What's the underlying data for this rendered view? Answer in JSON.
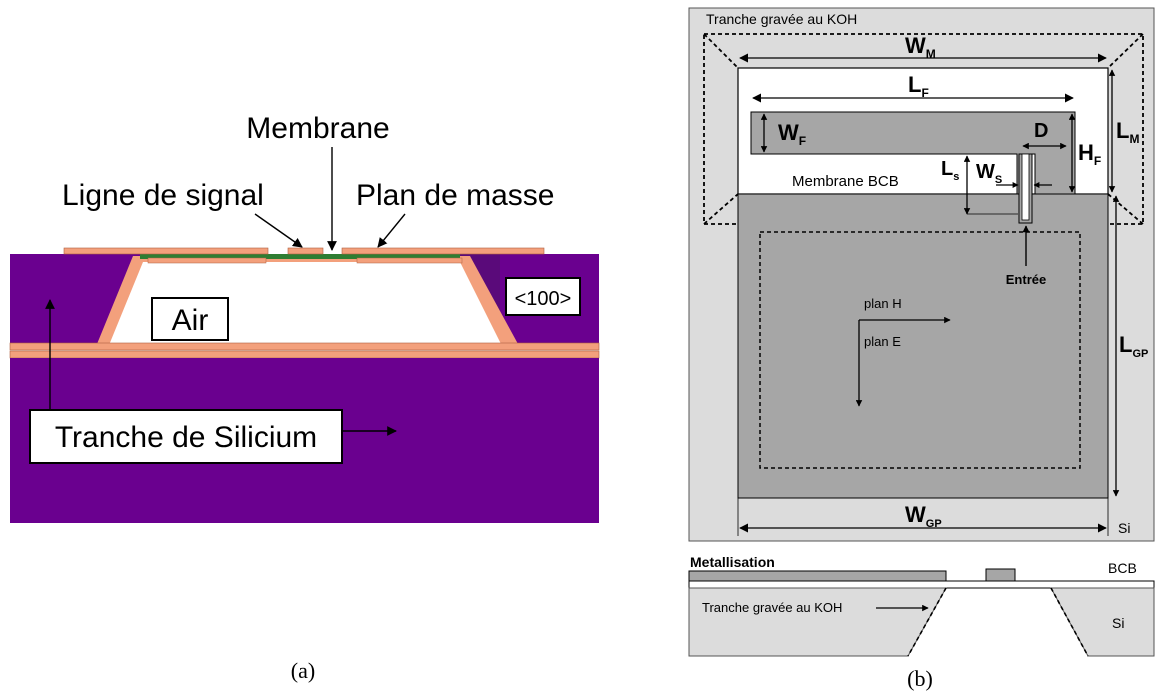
{
  "figure_a": {
    "caption": "(a)",
    "labels": {
      "membrane": "Membrane",
      "signal_line": "Ligne de signal",
      "ground_plane": "Plan de masse",
      "air": "Air",
      "orientation": "<100>",
      "wafer": "Tranche de Silicium"
    },
    "colors": {
      "silicon": "#6a008f",
      "silicon_dark": "#5a0a7a",
      "oxide": "#f3a07c",
      "metal": "#f3a07c",
      "membrane_line": "#2e7d32"
    }
  },
  "figure_b": {
    "caption": "(b)",
    "labels": {
      "koh_top": "Tranche gravée au KOH",
      "wm": "W",
      "wm_sub": "M",
      "lf": "L",
      "lf_sub": "F",
      "wf": "W",
      "wf_sub": "F",
      "d": "D",
      "hf": "H",
      "hf_sub": "F",
      "lm": "L",
      "lm_sub": "M",
      "ls": "L",
      "ls_sub": "s",
      "ws": "W",
      "ws_sub": "S",
      "membrane_bcb": "Membrane BCB",
      "input": "Entrée",
      "plane_h": "plan H",
      "plane_e": "plan E",
      "lgp": "L",
      "lgp_sub": "GP",
      "wgp": "W",
      "wgp_sub": "GP",
      "si_top": "Si",
      "metallisation": "Metallisation",
      "bcb": "BCB",
      "koh_bottom": "Tranche gravée au KOH",
      "si_bottom": "Si"
    },
    "colors": {
      "background": "#dcdcdc",
      "metal": "#a6a6a6",
      "membrane": "#ffffff"
    }
  }
}
